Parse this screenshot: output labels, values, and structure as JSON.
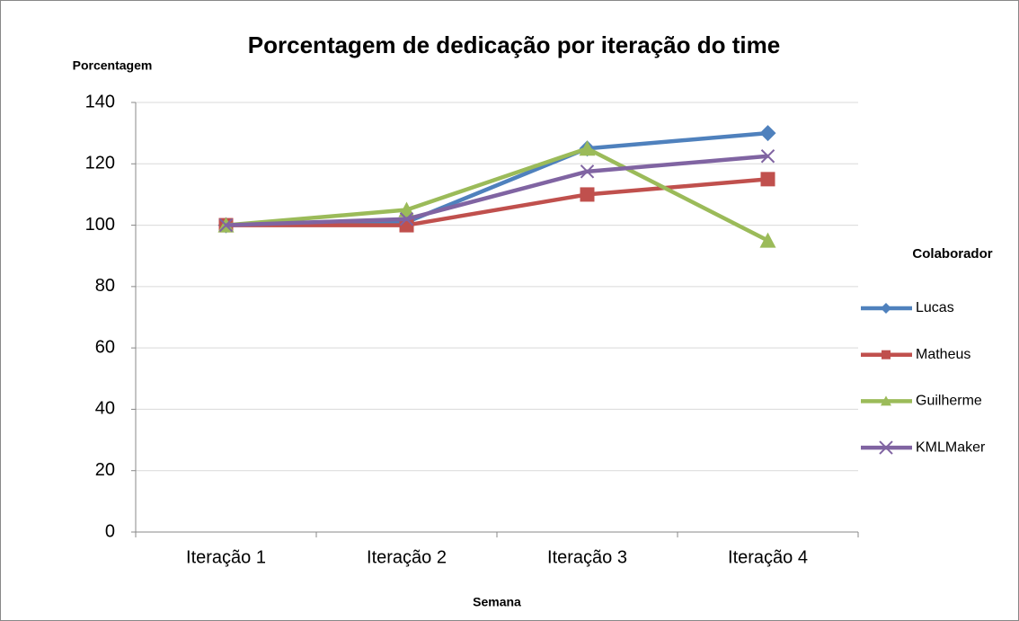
{
  "chart_data": {
    "type": "line",
    "title": "Porcentagem de dedicação por iteração do time",
    "y_label": "Porcentagem",
    "x_label": "Semana",
    "legend_title": "Colaborador",
    "legend_position": "right",
    "categories": [
      "Iteração 1",
      "Iteração 2",
      "Iteração 3",
      "Iteração 4"
    ],
    "series": [
      {
        "name": "Lucas",
        "color": "#4f81bd",
        "marker": "diamond",
        "values": [
          100,
          101,
          125,
          130
        ]
      },
      {
        "name": "Matheus",
        "color": "#c0504d",
        "marker": "square",
        "values": [
          100,
          100,
          110,
          115
        ]
      },
      {
        "name": "Guilherme",
        "color": "#9bbb59",
        "marker": "triangle",
        "values": [
          100,
          105,
          125,
          95
        ]
      },
      {
        "name": "KMLMaker",
        "color": "#8064a2",
        "marker": "x",
        "values": [
          100,
          102,
          117.5,
          122.5
        ]
      }
    ],
    "ylim": [
      0,
      140
    ],
    "yticks": [
      0,
      20,
      40,
      60,
      80,
      100,
      120,
      140
    ],
    "grid": true
  }
}
